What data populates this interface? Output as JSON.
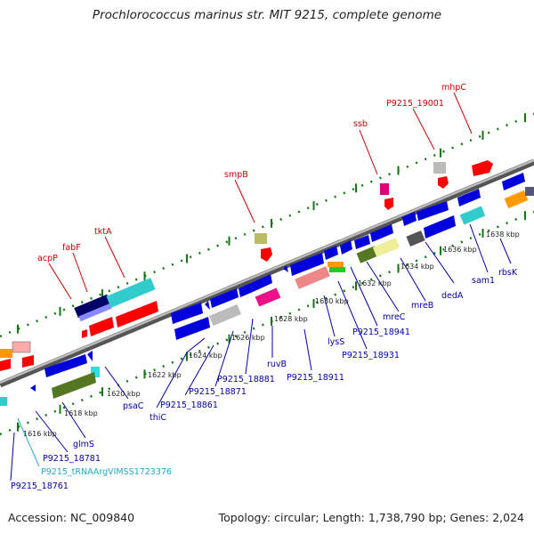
{
  "title": "Prochlorococcus marinus str. MIT 9215, complete genome",
  "accession": "Accession: NC_009840",
  "topology": "Topology: circular; Length: 1,738,790 bp; Genes: 2,024",
  "colors": {
    "forward_label": "#cc0000",
    "reverse_label": "#0000aa",
    "rna_label": "#22aacc",
    "backbone": "#888888",
    "tick": "#117711"
  },
  "kbp_labels": [
    "1616 kbp",
    "1618 kbp",
    "1620 kbp",
    "1622 kbp",
    "1624 kbp",
    "1626 kbp",
    "1628 kbp",
    "1630 kbp",
    "1632 kbp",
    "1634 kbp",
    "1636 kbp",
    "1638 kbp"
  ],
  "forward_labels": [
    "acpP",
    "fabF",
    "tktA",
    "smpB",
    "ssb",
    "P9215_19001",
    "mhpC"
  ],
  "reverse_labels": [
    "P9215_18761",
    "P9215_18781",
    "glmS",
    "psaC",
    "thiC",
    "P9215_18861",
    "P9215_18871",
    "P9215_18881",
    "ruvB",
    "P9215_18911",
    "P9215_18931",
    "lysS",
    "P9215_18941",
    "mreC",
    "mreB",
    "dedA",
    "sam1",
    "rbsK"
  ],
  "rna_labels": [
    "P9215_tRNAArgVIMSS1723376"
  ]
}
